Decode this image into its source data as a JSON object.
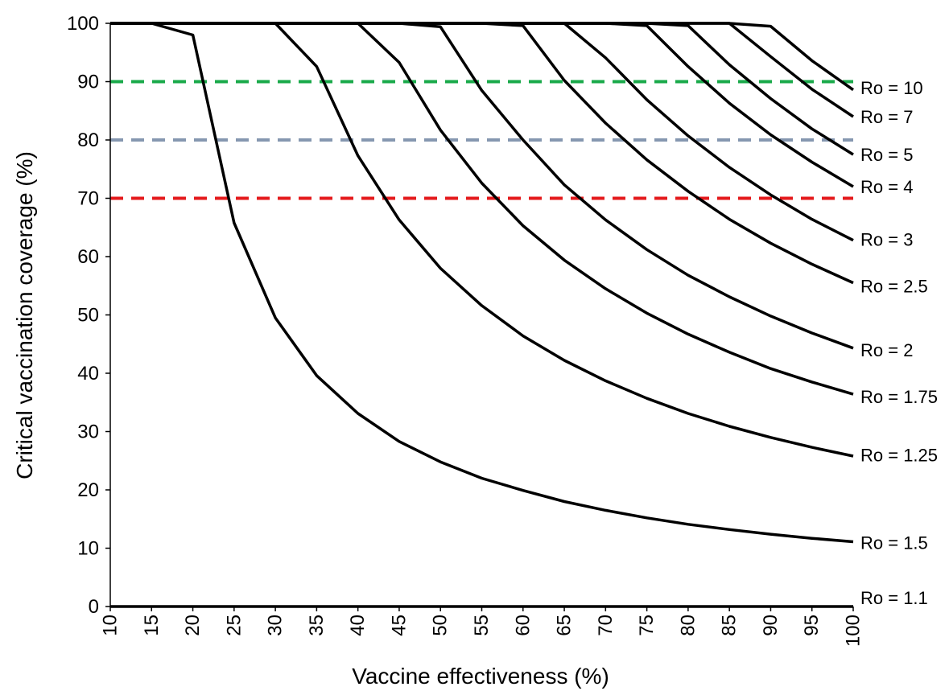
{
  "chart_data": {
    "type": "line",
    "xlabel": "Vaccine effectiveness (%)",
    "ylabel": "Critical vaccination coverage (%)",
    "xlim": [
      10,
      100
    ],
    "ylim": [
      0,
      100
    ],
    "x_ticks": [
      "10",
      "15",
      "20",
      "25",
      "30",
      "35",
      "40",
      "45",
      "50",
      "55",
      "60",
      "65",
      "70",
      "75",
      "80",
      "85",
      "90",
      "95",
      "100"
    ],
    "y_ticks": [
      "0",
      "10",
      "20",
      "30",
      "40",
      "50",
      "60",
      "70",
      "80",
      "90",
      "100"
    ],
    "x": [
      10,
      15,
      20,
      25,
      30,
      35,
      40,
      45,
      50,
      55,
      60,
      65,
      70,
      75,
      80,
      85,
      90,
      95,
      100
    ],
    "series": [
      {
        "name": "Ro = 1.1",
        "values": [
          0,
          0,
          0,
          0,
          0,
          0,
          0,
          0,
          0,
          0,
          0,
          0,
          0,
          0,
          0,
          0,
          0,
          0,
          0
        ]
      },
      {
        "name": "Ro = 1.5",
        "values": [
          100,
          100,
          98,
          65.8,
          49.5,
          39.6,
          33.1,
          28.3,
          24.8,
          22.0,
          19.9,
          18.0,
          16.5,
          15.2,
          14.1,
          13.2,
          12.4,
          11.7,
          11.1
        ]
      },
      {
        "name": "Ro = 1.25",
        "values": [
          100,
          100,
          100,
          100,
          100,
          92.6,
          77.3,
          66.3,
          58.0,
          51.6,
          46.4,
          42.2,
          38.7,
          35.7,
          33.1,
          30.9,
          29.0,
          27.3,
          25.8
        ]
      },
      {
        "name": "Ro = 1.75",
        "values": [
          100,
          100,
          100,
          100,
          100,
          100,
          100,
          93.3,
          81.7,
          72.6,
          65.3,
          59.4,
          54.5,
          50.3,
          46.7,
          43.6,
          40.8,
          38.5,
          36.4
        ]
      },
      {
        "name": "Ro = 2",
        "values": [
          100,
          100,
          100,
          100,
          100,
          100,
          100,
          100,
          99.4,
          88.5,
          80.0,
          72.3,
          66.3,
          61.2,
          56.8,
          53.1,
          49.8,
          46.9,
          44.3
        ]
      },
      {
        "name": "Ro = 2.5",
        "values": [
          100,
          100,
          100,
          100,
          100,
          100,
          100,
          100,
          100,
          100,
          99.6,
          90.2,
          82.9,
          76.6,
          71.2,
          66.4,
          62.3,
          58.7,
          55.5
        ]
      },
      {
        "name": "Ro = 3",
        "values": [
          100,
          100,
          100,
          100,
          100,
          100,
          100,
          100,
          100,
          100,
          100,
          100,
          94.1,
          86.9,
          80.7,
          75.3,
          70.6,
          66.4,
          62.8
        ]
      },
      {
        "name": "Ro = 4",
        "values": [
          100,
          100,
          100,
          100,
          100,
          100,
          100,
          100,
          100,
          100,
          100,
          100,
          100,
          99.6,
          92.6,
          86.3,
          80.9,
          76.2,
          72.0
        ]
      },
      {
        "name": "Ro = 5",
        "values": [
          100,
          100,
          100,
          100,
          100,
          100,
          100,
          100,
          100,
          100,
          100,
          100,
          100,
          100,
          99.6,
          92.9,
          87.1,
          81.9,
          77.5
        ]
      },
      {
        "name": "Ro = 7",
        "values": [
          100,
          100,
          100,
          100,
          100,
          100,
          100,
          100,
          100,
          100,
          100,
          100,
          100,
          100,
          100,
          100,
          94.3,
          88.7,
          84.0
        ]
      },
      {
        "name": "Ro = 10",
        "values": [
          100,
          100,
          100,
          100,
          100,
          100,
          100,
          100,
          100,
          100,
          100,
          100,
          100,
          100,
          100,
          100,
          99.5,
          93.6,
          88.6
        ]
      }
    ],
    "reference_lines": [
      {
        "y": 90,
        "color": "#1aaa4a",
        "style": "dashed"
      },
      {
        "y": 80,
        "color": "#8597b0",
        "style": "dashed"
      },
      {
        "y": 70,
        "color": "#e41a1c",
        "style": "dashed"
      }
    ],
    "right_labels": [
      {
        "text": "Ro = 10",
        "y": 89
      },
      {
        "text": "Ro = 7",
        "y": 84
      },
      {
        "text": "Ro = 5",
        "y": 77.5
      },
      {
        "text": "Ro = 4",
        "y": 72
      },
      {
        "text": "Ro = 3",
        "y": 63
      },
      {
        "text": "Ro = 2.5",
        "y": 55
      },
      {
        "text": "Ro = 2",
        "y": 44
      },
      {
        "text": "Ro = 1.75",
        "y": 36
      },
      {
        "text": "Ro = 1.25",
        "y": 26
      },
      {
        "text": "Ro = 1.5",
        "y": 11
      },
      {
        "text": "Ro = 1.1",
        "y": 1.5
      }
    ],
    "grid": false,
    "line_color": "#000000",
    "legend": "right-side labels"
  }
}
